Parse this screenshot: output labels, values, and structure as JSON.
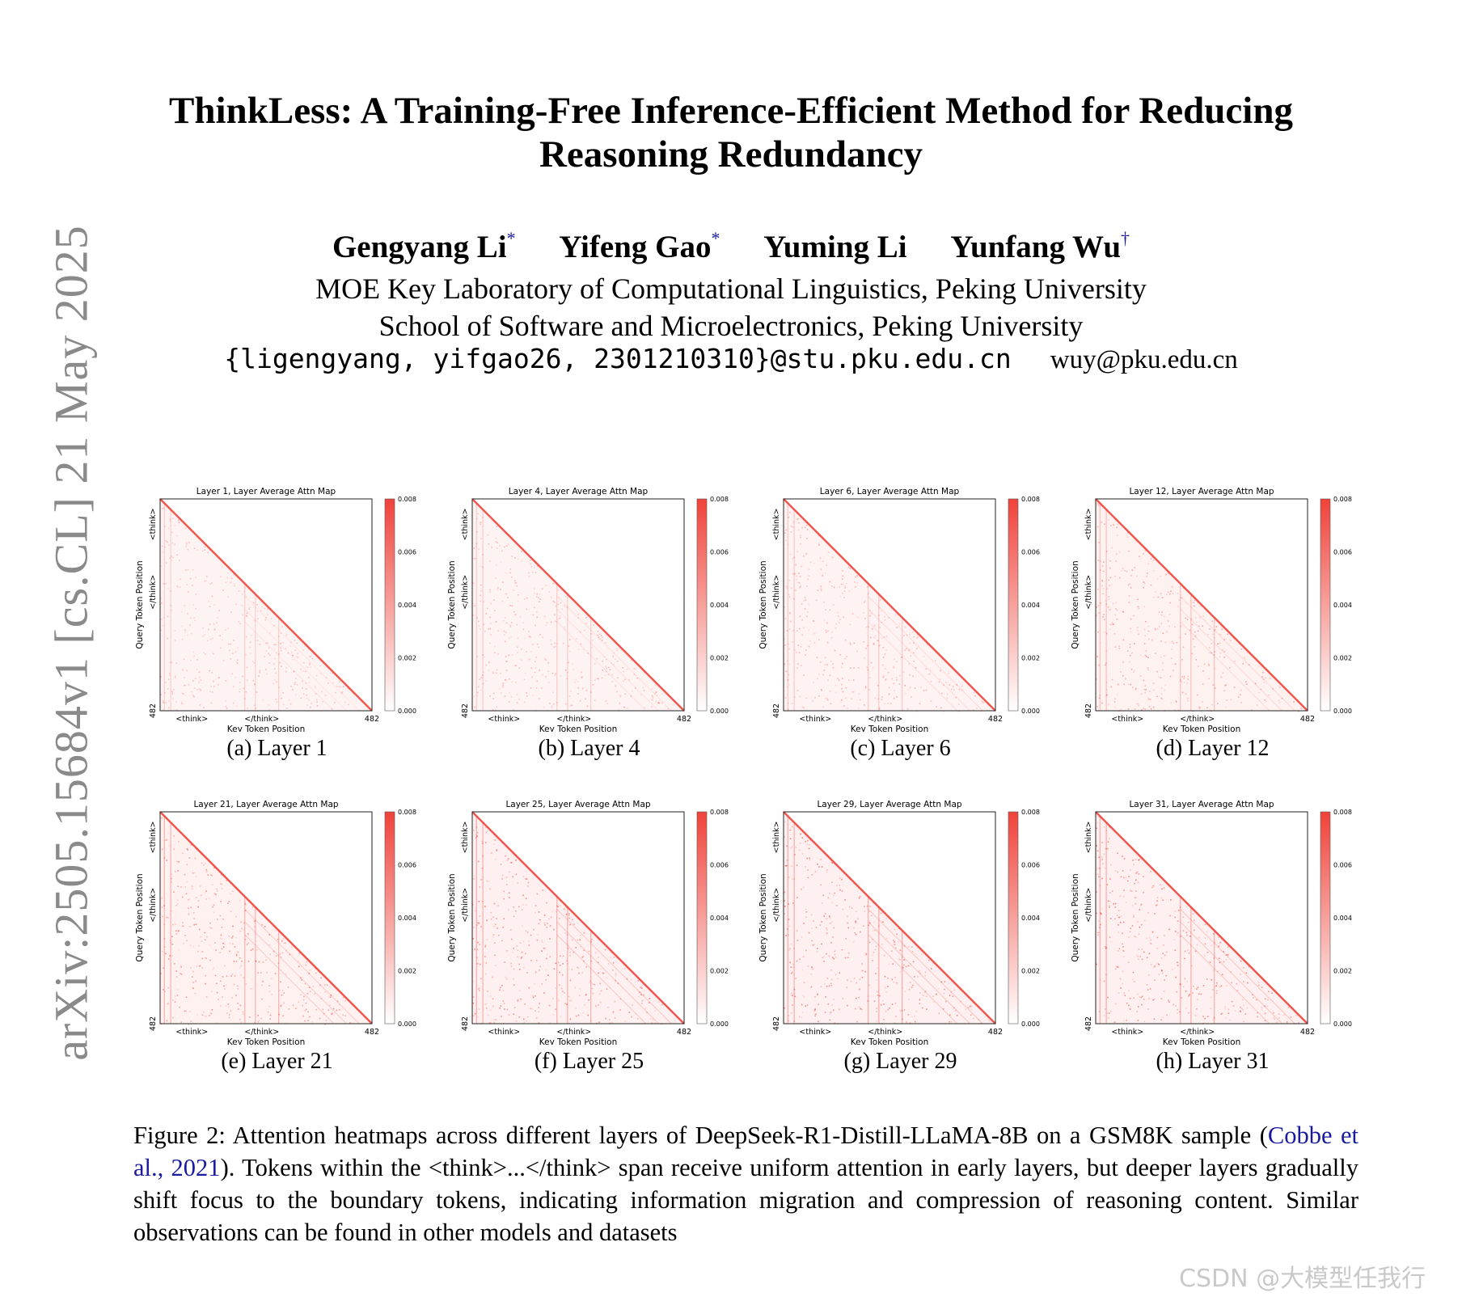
{
  "arxiv_stamp": "arXiv:2505.15684v1  [cs.CL]  21 May 2025",
  "title": {
    "line1": "ThinkLess: A Training-Free Inference-Efficient Method for Reducing",
    "line2": "Reasoning Redundancy"
  },
  "authors": [
    {
      "name": "Gengyang Li",
      "mark": "*"
    },
    {
      "name": "Yifeng Gao",
      "mark": "*"
    },
    {
      "name": "Yuming Li",
      "mark": ""
    },
    {
      "name": "Yunfang Wu",
      "mark": "†"
    }
  ],
  "affiliations": [
    "MOE Key Laboratory of Computational Linguistics, Peking University",
    "School of Software and Microelectronics, Peking University"
  ],
  "emails": {
    "group": "{ligengyang, yifgao26, 2301210310}@stu.pku.edu.cn",
    "single": "wuy@pku.edu.cn"
  },
  "chart_data": [
    {
      "type": "heatmap",
      "title": "Layer 1, Layer Average Attn Map",
      "subcaption": "(a) Layer 1",
      "layer": 1,
      "xlabel": "Key Token Position",
      "ylabel": "Query Token Position",
      "x_ticks": [
        "<think>",
        "</think>",
        "482"
      ],
      "y_ticks": [
        "<think>",
        "</think>",
        "482"
      ],
      "colorbar_ticks": [
        "0.000",
        "0.002",
        "0.004",
        "0.006",
        "0.008"
      ],
      "vmin": 0,
      "vmax": 0.008,
      "colormap": "white-to-red"
    },
    {
      "type": "heatmap",
      "title": "Layer 4, Layer Average Attn Map",
      "subcaption": "(b) Layer 4",
      "layer": 4,
      "xlabel": "Key Token Position",
      "ylabel": "Query Token Position",
      "x_ticks": [
        "<think>",
        "</think>",
        "482"
      ],
      "y_ticks": [
        "<think>",
        "</think>",
        "482"
      ],
      "colorbar_ticks": [
        "0.000",
        "0.002",
        "0.004",
        "0.006",
        "0.008"
      ],
      "vmin": 0,
      "vmax": 0.008,
      "colormap": "white-to-red"
    },
    {
      "type": "heatmap",
      "title": "Layer 6, Layer Average Attn Map",
      "subcaption": "(c) Layer 6",
      "layer": 6,
      "xlabel": "Key Token Position",
      "ylabel": "Query Token Position",
      "x_ticks": [
        "<think>",
        "</think>",
        "482"
      ],
      "y_ticks": [
        "<think>",
        "</think>",
        "482"
      ],
      "colorbar_ticks": [
        "0.000",
        "0.002",
        "0.004",
        "0.006",
        "0.008"
      ],
      "vmin": 0,
      "vmax": 0.008,
      "colormap": "white-to-red"
    },
    {
      "type": "heatmap",
      "title": "Layer 12, Layer Average Attn Map",
      "subcaption": "(d) Layer 12",
      "layer": 12,
      "xlabel": "Key Token Position",
      "ylabel": "Query Token Position",
      "x_ticks": [
        "<think>",
        "</think>",
        "482"
      ],
      "y_ticks": [
        "<think>",
        "</think>",
        "482"
      ],
      "colorbar_ticks": [
        "0.000",
        "0.002",
        "0.004",
        "0.006",
        "0.008"
      ],
      "vmin": 0,
      "vmax": 0.008,
      "colormap": "white-to-red"
    },
    {
      "type": "heatmap",
      "title": "Layer 21, Layer Average Attn Map",
      "subcaption": "(e) Layer 21",
      "layer": 21,
      "xlabel": "Key Token Position",
      "ylabel": "Query Token Position",
      "x_ticks": [
        "<think>",
        "</think>",
        "482"
      ],
      "y_ticks": [
        "<think>",
        "</think>",
        "482"
      ],
      "colorbar_ticks": [
        "0.000",
        "0.002",
        "0.004",
        "0.006",
        "0.008"
      ],
      "vmin": 0,
      "vmax": 0.008,
      "colormap": "white-to-red"
    },
    {
      "type": "heatmap",
      "title": "Layer 25, Layer Average Attn Map",
      "subcaption": "(f) Layer 25",
      "layer": 25,
      "xlabel": "Key Token Position",
      "ylabel": "Query Token Position",
      "x_ticks": [
        "<think>",
        "</think>",
        "482"
      ],
      "y_ticks": [
        "<think>",
        "</think>",
        "482"
      ],
      "colorbar_ticks": [
        "0.000",
        "0.002",
        "0.004",
        "0.006",
        "0.008"
      ],
      "vmin": 0,
      "vmax": 0.008,
      "colormap": "white-to-red"
    },
    {
      "type": "heatmap",
      "title": "Layer 29, Layer Average Attn Map",
      "subcaption": "(g) Layer 29",
      "layer": 29,
      "xlabel": "Key Token Position",
      "ylabel": "Query Token Position",
      "x_ticks": [
        "<think>",
        "</think>",
        "482"
      ],
      "y_ticks": [
        "<think>",
        "</think>",
        "482"
      ],
      "colorbar_ticks": [
        "0.000",
        "0.002",
        "0.004",
        "0.006",
        "0.008"
      ],
      "vmin": 0,
      "vmax": 0.008,
      "colormap": "white-to-red"
    },
    {
      "type": "heatmap",
      "title": "Layer 31, Layer Average Attn Map",
      "subcaption": "(h) Layer 31",
      "layer": 31,
      "xlabel": "Key Token Position",
      "ylabel": "Query Token Position",
      "x_ticks": [
        "<think>",
        "</think>",
        "482"
      ],
      "y_ticks": [
        "<think>",
        "</think>",
        "482"
      ],
      "colorbar_ticks": [
        "0.000",
        "0.002",
        "0.004",
        "0.006",
        "0.008"
      ],
      "vmin": 0,
      "vmax": 0.008,
      "colormap": "white-to-red"
    }
  ],
  "caption": {
    "part1": "Figure 2:  Attention heatmaps across different layers of DeepSeek-R1-Distill-LLaMA-8B on a GSM8K sample (",
    "cite": "Cobbe et al., 2021",
    "part2": "). Tokens within the <think>...</think> span receive uniform attention in early layers, but deeper layers gradually shift focus to the boundary tokens, indicating information migration and compression of reasoning content. Similar observations can be found in other models and datasets"
  },
  "watermark": "CSDN @大模型任我行",
  "colors": {
    "heat": "#f0423a",
    "cite": "#1a1aa0",
    "stamp": "#8a8a8a",
    "watermark": "#c9c9c9"
  }
}
